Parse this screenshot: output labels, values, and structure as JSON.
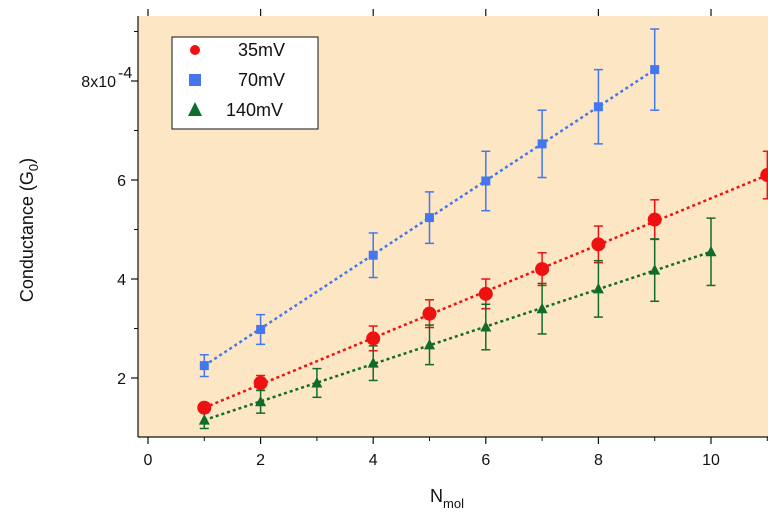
{
  "chart_data": {
    "type": "scatter",
    "title": "",
    "xlabel_main": "N",
    "xlabel_sub": "mol",
    "ylabel_main": "Conductance (G",
    "ylabel_sub": "0",
    "ylabel_close": ")",
    "xlim": [
      -0.2,
      11
    ],
    "ylim": [
      0.00012,
      0.00092
    ],
    "x_ticks": [
      0,
      2,
      4,
      6,
      8,
      10
    ],
    "x_tick_labels": [
      "0",
      "2",
      "4",
      "6",
      "8",
      "10"
    ],
    "y_ticks": [
      0.0002,
      0.0004,
      0.0006,
      0.0008
    ],
    "y_tick_labels": [
      "2",
      "4",
      "6",
      "8x10"
    ],
    "y_exponent_label": "-4",
    "plot_background": "#fde6c3",
    "legend_position": "top-left",
    "grid": false,
    "series": [
      {
        "name": "35mV",
        "marker": "circle",
        "color": "#ee1111",
        "x": [
          1,
          2,
          4,
          5,
          6,
          7,
          8,
          9,
          11
        ],
        "y": [
          0.00014,
          0.00019,
          0.00028,
          0.00033,
          0.00037,
          0.00042,
          0.00047,
          0.00052,
          0.00061
        ],
        "err": [
          1e-05,
          1.5e-05,
          2.5e-05,
          2.8e-05,
          3e-05,
          3.3e-05,
          3.7e-05,
          4e-05,
          4.8e-05
        ],
        "fit_x": [
          1,
          11
        ],
        "fit_y": [
          0.00014,
          0.00061
        ]
      },
      {
        "name": "70mV",
        "marker": "square",
        "color": "#4477ee",
        "x": [
          1,
          2,
          4,
          5,
          6,
          7,
          8,
          9
        ],
        "y": [
          0.000225,
          0.000298,
          0.000448,
          0.000524,
          0.000598,
          0.000673,
          0.000748,
          0.000823
        ],
        "err": [
          2.2e-05,
          3e-05,
          4.5e-05,
          5.2e-05,
          6e-05,
          6.8e-05,
          7.5e-05,
          8.2e-05
        ],
        "fit_x": [
          1,
          9
        ],
        "fit_y": [
          0.000225,
          0.000823
        ]
      },
      {
        "name": "140mV",
        "marker": "triangle",
        "color": "#116b2b",
        "x": [
          1,
          2,
          3,
          4,
          5,
          6,
          7,
          8,
          9,
          10
        ],
        "y": [
          0.000115,
          0.000152,
          0.00019,
          0.00023,
          0.000267,
          0.000303,
          0.00034,
          0.00038,
          0.000418,
          0.000455
        ],
        "err": [
          1.7e-05,
          2.3e-05,
          2.9e-05,
          3.5e-05,
          4e-05,
          4.6e-05,
          5.1e-05,
          5.7e-05,
          6.3e-05,
          6.8e-05
        ],
        "fit_x": [
          1,
          10
        ],
        "fit_y": [
          0.000115,
          0.000455
        ]
      }
    ]
  }
}
